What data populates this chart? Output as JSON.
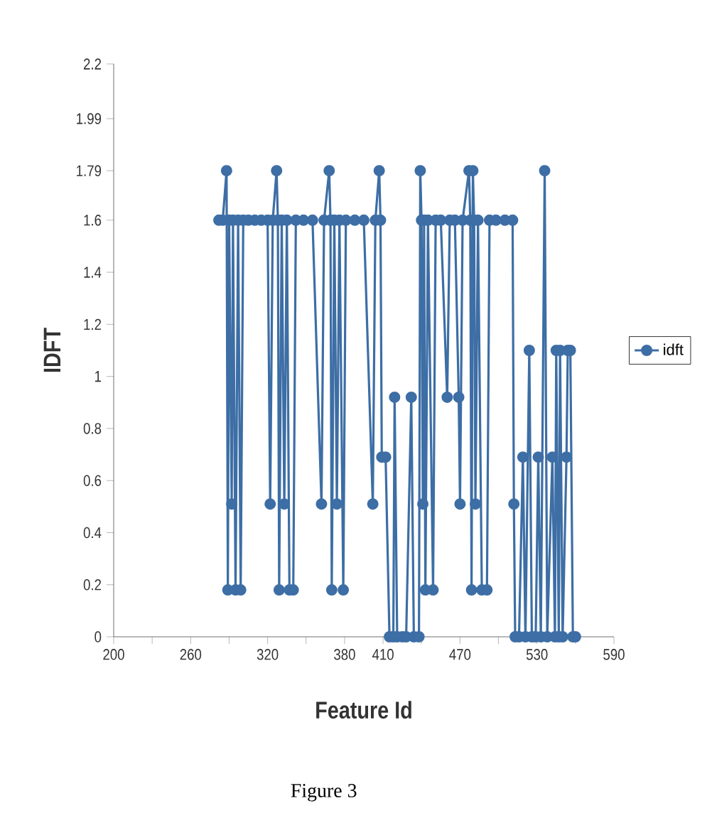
{
  "chart_data": {
    "type": "line",
    "xlabel": "Feature Id",
    "ylabel": "IDFT",
    "annotations": [
      "Figure 3"
    ],
    "xlim": [
      200,
      590
    ],
    "ylim": [
      0,
      2.2
    ],
    "xticks": [
      {
        "value": 200,
        "label": "200"
      },
      {
        "value": 230,
        "label": null
      },
      {
        "value": 260,
        "label": "260"
      },
      {
        "value": 290,
        "label": null
      },
      {
        "value": 320,
        "label": "320"
      },
      {
        "value": 350,
        "label": null
      },
      {
        "value": 380,
        "label": "380"
      },
      {
        "value": 410,
        "label": "410"
      },
      {
        "value": 440,
        "label": null
      },
      {
        "value": 470,
        "label": "470"
      },
      {
        "value": 500,
        "label": null
      },
      {
        "value": 530,
        "label": "530"
      },
      {
        "value": 560,
        "label": null
      },
      {
        "value": 590,
        "label": "590"
      }
    ],
    "yticks": [
      0,
      0.2,
      0.4,
      0.6,
      0.8,
      1,
      1.2,
      1.4,
      1.6,
      1.79,
      1.99,
      2.2
    ],
    "grid": false,
    "legend": "right",
    "marker": "circle",
    "line_style": "solid",
    "series": [
      {
        "name": "idft",
        "color": "#3d6ea5",
        "x": [
          282,
          285,
          288,
          289,
          290,
          292,
          293,
          295,
          297,
          299,
          301,
          305,
          310,
          315,
          320,
          322,
          324,
          327,
          328,
          329,
          331,
          333,
          335,
          337,
          340,
          342,
          348,
          355,
          362,
          364,
          368,
          369,
          370,
          372,
          374,
          376,
          379,
          381,
          388,
          395,
          402,
          404,
          407,
          408,
          409,
          412,
          415,
          418,
          419,
          421,
          425,
          428,
          432,
          434,
          438,
          439,
          440,
          441,
          442,
          443,
          445,
          449,
          451,
          455,
          460,
          462,
          466,
          469,
          470,
          472,
          477,
          478,
          479,
          480,
          481,
          482,
          484,
          487,
          491,
          493,
          498,
          505,
          511,
          512,
          513,
          516,
          519,
          521,
          524,
          526,
          529,
          531,
          533,
          536,
          538,
          542,
          544,
          545,
          547,
          548,
          550,
          553,
          554,
          556,
          558,
          560
        ],
        "values": [
          1.6,
          1.6,
          1.79,
          0.18,
          1.6,
          0.51,
          1.6,
          0.18,
          1.6,
          0.18,
          1.6,
          1.6,
          1.6,
          1.6,
          1.6,
          0.51,
          1.6,
          1.79,
          1.6,
          0.18,
          1.6,
          0.51,
          1.6,
          0.18,
          0.18,
          1.6,
          1.6,
          1.6,
          0.51,
          1.6,
          1.79,
          1.6,
          0.18,
          1.6,
          0.51,
          1.6,
          0.18,
          1.6,
          1.6,
          1.6,
          0.51,
          1.6,
          1.79,
          1.6,
          0.69,
          0.69,
          0,
          0,
          0.92,
          0,
          0,
          0,
          0.92,
          0,
          0,
          1.79,
          1.6,
          0.51,
          1.6,
          0.18,
          1.6,
          0.18,
          1.6,
          1.6,
          0.92,
          1.6,
          1.6,
          0.92,
          0.51,
          1.6,
          1.79,
          1.6,
          0.18,
          1.79,
          1.6,
          0.51,
          1.6,
          0.18,
          0.18,
          1.6,
          1.6,
          1.6,
          1.6,
          0.51,
          0,
          0,
          0.69,
          0,
          1.1,
          0,
          0,
          0.69,
          0,
          1.79,
          0,
          0.69,
          0,
          1.1,
          0,
          1.1,
          0,
          0.69,
          1.1,
          1.1,
          0,
          0
        ]
      }
    ]
  }
}
